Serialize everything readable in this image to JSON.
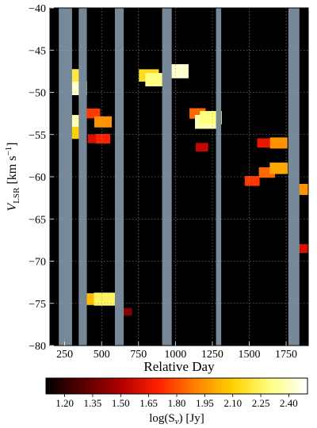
{
  "chart_data": {
    "type": "heatmap",
    "title": "",
    "xlabel": "Relative Day",
    "ylabel": {
      "main": "V",
      "sub": "LSR",
      "unit_pre": " [km s",
      "unit_sup": "−1",
      "unit_post": "]"
    },
    "xlim": [
      150,
      1900
    ],
    "ylim": [
      -80,
      -40
    ],
    "xticks": [
      250,
      500,
      750,
      1000,
      1250,
      1500,
      1750
    ],
    "yticks": [
      -40,
      -45,
      -50,
      -55,
      -60,
      -65,
      -70,
      -75,
      -80
    ],
    "ytick_labels": [
      "−40",
      "−45",
      "−50",
      "−55",
      "−60",
      "−65",
      "−70",
      "−75",
      "−80"
    ],
    "grid": true,
    "background_color": "#000000",
    "gap_color": "#778899",
    "observation_gaps": [
      [
        210,
        300
      ],
      [
        345,
        400
      ],
      [
        590,
        650
      ],
      [
        910,
        975
      ],
      [
        1275,
        1310
      ],
      [
        1765,
        1840
      ]
    ],
    "emission_features": [
      {
        "x": 322,
        "v": -49.5,
        "log_flux": 2.42
      },
      {
        "x": 322,
        "v": -53.5,
        "log_flux": 2.38
      },
      {
        "x": 322,
        "v": -48.0,
        "log_flux": 2.2
      },
      {
        "x": 322,
        "v": -54.8,
        "log_flux": 2.1
      },
      {
        "x": 440,
        "v": -52.5,
        "log_flux": 1.75
      },
      {
        "x": 450,
        "v": -55.5,
        "log_flux": 1.6
      },
      {
        "x": 510,
        "v": -53.5,
        "log_flux": 1.95
      },
      {
        "x": 510,
        "v": -55.5,
        "log_flux": 1.7
      },
      {
        "x": 820,
        "v": -48.0,
        "log_flux": 2.15
      },
      {
        "x": 870,
        "v": -48.5,
        "log_flux": 2.3
      },
      {
        "x": 1010,
        "v": -47.5,
        "log_flux": 2.42
      },
      {
        "x": 1150,
        "v": -52.5,
        "log_flux": 1.85
      },
      {
        "x": 1210,
        "v": -53.5,
        "log_flux": 2.38
      },
      {
        "x": 1240,
        "v": -53.0,
        "log_flux": 2.3
      },
      {
        "x": 1180,
        "v": -56.5,
        "log_flux": 1.55
      },
      {
        "x": 1520,
        "v": -60.5,
        "log_flux": 1.75
      },
      {
        "x": 1600,
        "v": -56.0,
        "log_flux": 1.65
      },
      {
        "x": 1700,
        "v": -56.0,
        "log_flux": 1.95
      },
      {
        "x": 1620,
        "v": -59.5,
        "log_flux": 1.85
      },
      {
        "x": 1700,
        "v": -59.0,
        "log_flux": 2.0
      },
      {
        "x": 1880,
        "v": -61.5,
        "log_flux": 1.95
      },
      {
        "x": 1870,
        "v": -68.5,
        "log_flux": 1.6
      },
      {
        "x": 460,
        "v": -74.5,
        "log_flux": 2.05
      },
      {
        "x": 520,
        "v": -74.5,
        "log_flux": 2.25
      },
      {
        "x": 670,
        "v": -76.0,
        "log_flux": 1.4
      }
    ],
    "colorbar": {
      "label_main": "log(S",
      "label_sub": "ν",
      "label_post": ") [Jy]",
      "min": 1.1,
      "max": 2.5,
      "ticks": [
        "1.20",
        "1.35",
        "1.50",
        "1.65",
        "1.80",
        "1.95",
        "2.10",
        "2.25",
        "2.40"
      ],
      "colors": [
        "#000000",
        "#5a0000",
        "#b00000",
        "#ff2000",
        "#ff8000",
        "#ffd000",
        "#ffff80",
        "#ffffff"
      ]
    }
  }
}
